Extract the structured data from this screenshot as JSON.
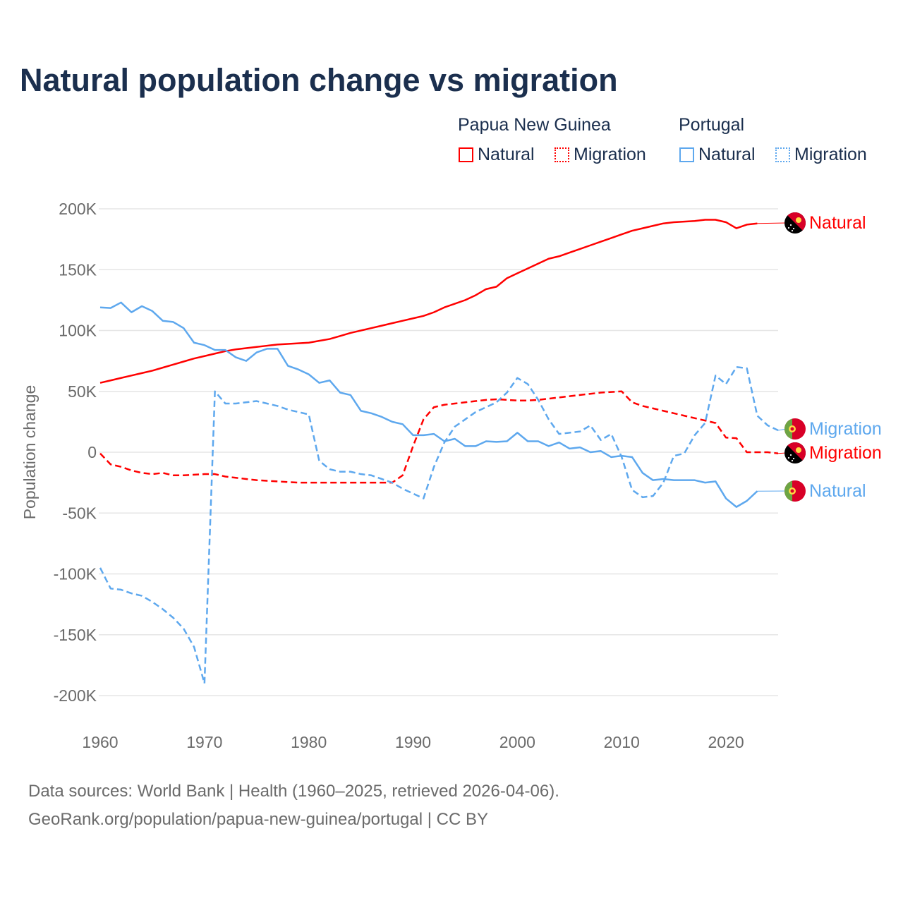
{
  "title": "Natural population change vs migration",
  "legend": {
    "groups": [
      {
        "name": "Papua New Guinea",
        "color": "#ff0000",
        "items": [
          "Natural",
          "Migration"
        ]
      },
      {
        "name": "Portugal",
        "color": "#5ea8ee",
        "items": [
          "Natural",
          "Migration"
        ]
      }
    ]
  },
  "footer": {
    "line1": "Data sources: World Bank | Health (1960–2025, retrieved 2026-04-06).",
    "line2": "GeoRank.org/population/papua-new-guinea/portugal | CC BY"
  },
  "chart_data": {
    "type": "line",
    "title": "Natural population change vs migration",
    "ylabel": "Population change",
    "xlabel": "",
    "xlim": [
      1960,
      2025
    ],
    "ylim": [
      -200000,
      200000
    ],
    "x_ticks": [
      1960,
      1970,
      1980,
      1990,
      2000,
      2010,
      2020
    ],
    "y_ticks": [
      200000,
      150000,
      100000,
      50000,
      0,
      -50000,
      -100000,
      -150000,
      -200000
    ],
    "y_tick_labels": [
      "200K",
      "150K",
      "100K",
      "50K",
      "0",
      "-50K",
      "-100K",
      "-150K",
      "-200K"
    ],
    "grid": true,
    "x_start": 1960,
    "series": [
      {
        "name": "Natural",
        "country": "Papua New Guinea",
        "color": "#ff0000",
        "dash": false,
        "end_label": "Natural",
        "values": [
          57000,
          59000,
          61000,
          63000,
          65000,
          67000,
          69500,
          72000,
          74500,
          77000,
          79000,
          81000,
          83000,
          84500,
          85500,
          86500,
          87500,
          88500,
          89000,
          89500,
          90000,
          91500,
          93000,
          95500,
          98000,
          100000,
          102000,
          104000,
          106000,
          108000,
          110000,
          112000,
          115000,
          119000,
          122000,
          125000,
          129000,
          134000,
          136000,
          143000,
          147000,
          151000,
          155000,
          159000,
          161000,
          164000,
          167000,
          170000,
          173000,
          176000,
          179000,
          182000,
          184000,
          186000,
          188000,
          189000,
          189500,
          190000,
          191000,
          191000,
          189000,
          184000,
          187000,
          188000
        ]
      },
      {
        "name": "Migration",
        "country": "Papua New Guinea",
        "color": "#ff0000",
        "dash": true,
        "end_label": "Migration",
        "values": [
          -1000,
          -10000,
          -12000,
          -15000,
          -17000,
          -18000,
          -17000,
          -19000,
          -19000,
          -18500,
          -18000,
          -18000,
          -20000,
          -21000,
          -22000,
          -23000,
          -23500,
          -24000,
          -24500,
          -25000,
          -25000,
          -25000,
          -25000,
          -25000,
          -25000,
          -25000,
          -25000,
          -25000,
          -25000,
          -19000,
          5000,
          27000,
          37000,
          39000,
          40000,
          41000,
          42000,
          43000,
          43500,
          43000,
          42500,
          42500,
          43000,
          44000,
          45000,
          46000,
          47000,
          48000,
          49000,
          49500,
          50000,
          41000,
          38000,
          36000,
          34000,
          32000,
          30000,
          28000,
          26000,
          24000,
          12000,
          11500,
          0,
          0,
          0,
          -1000
        ]
      },
      {
        "name": "Natural",
        "country": "Portugal",
        "color": "#5ea8ee",
        "dash": false,
        "end_label": "Natural",
        "values": [
          119000,
          118500,
          123000,
          115000,
          120000,
          116000,
          108000,
          107000,
          102000,
          90000,
          88000,
          84000,
          84000,
          78000,
          75000,
          82000,
          85000,
          85000,
          71000,
          68000,
          64000,
          57000,
          59000,
          49000,
          47000,
          34000,
          32000,
          29000,
          25000,
          23000,
          14000,
          14000,
          15000,
          9000,
          11000,
          5000,
          5000,
          9000,
          8500,
          9000,
          16000,
          9000,
          9000,
          5000,
          8000,
          3000,
          4000,
          0,
          1000,
          -4000,
          -3000,
          -4000,
          -17000,
          -23000,
          -22000,
          -23000,
          -23000,
          -23000,
          -25000,
          -24000,
          -38000,
          -45000,
          -40000,
          -32000
        ]
      },
      {
        "name": "Migration",
        "country": "Portugal",
        "color": "#5ea8ee",
        "dash": true,
        "end_label": "Migration",
        "values": [
          -95000,
          -112000,
          -113000,
          -116000,
          -118000,
          -123000,
          -129000,
          -136000,
          -145000,
          -160000,
          -190000,
          50000,
          40000,
          40000,
          41000,
          42000,
          40000,
          38000,
          35000,
          33000,
          31000,
          -7000,
          -14000,
          -16000,
          -16000,
          -18000,
          -19000,
          -22000,
          -25000,
          -30000,
          -34000,
          -38000,
          -12000,
          8000,
          21000,
          27000,
          33000,
          37000,
          41000,
          49000,
          61000,
          56000,
          43000,
          27000,
          15000,
          16000,
          17000,
          22000,
          10000,
          15000,
          -4000,
          -31000,
          -37000,
          -36000,
          -25000,
          -3000,
          -1000,
          14000,
          24000,
          63000,
          56000,
          70000,
          69000,
          30000,
          22000,
          18000
        ]
      }
    ]
  }
}
